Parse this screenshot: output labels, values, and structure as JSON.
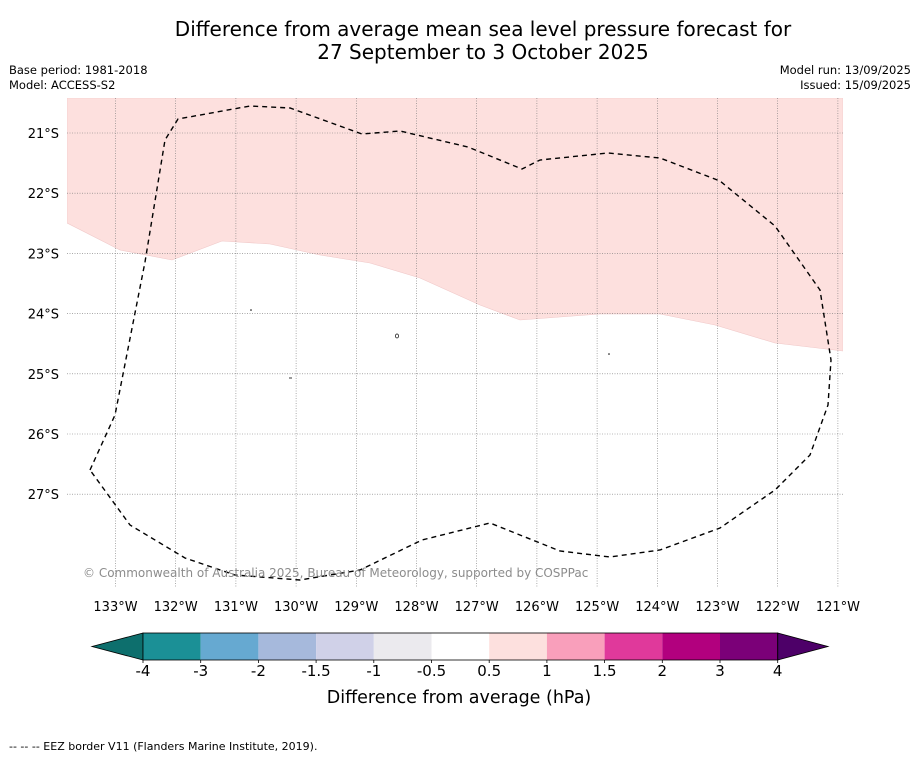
{
  "title": {
    "line1": "Difference from average mean sea level pressure forecast for",
    "line2": "27 September to 3 October 2025"
  },
  "meta_left": {
    "base_period": "Base period: 1981-2018",
    "model": "Model: ACCESS-S2"
  },
  "meta_right": {
    "model_run": "Model run: 13/09/2025",
    "issued": "Issued: 15/09/2025"
  },
  "map": {
    "latitude_labels": [
      "21°S",
      "22°S",
      "23°S",
      "24°S",
      "25°S",
      "26°S",
      "27°S"
    ],
    "longitude_labels": [
      "133°W",
      "132°W",
      "131°W",
      "130°W",
      "129°W",
      "128°W",
      "127°W",
      "126°W",
      "125°W",
      "124°W",
      "123°W",
      "122°W",
      "121°W"
    ],
    "anomaly_region": {
      "category": "0.5 to 1 hPa",
      "color": "#fde0de"
    },
    "copyright": "© Commonwealth of Australia 2025, Bureau of Meteorology, supported by COSPPac"
  },
  "colorbar": {
    "labels": [
      "-4",
      "-3",
      "-2",
      "-1.5",
      "-1",
      "-0.5",
      "0.5",
      "1",
      "1.5",
      "2",
      "3",
      "4"
    ],
    "colors": [
      "#0d6f6d",
      "#1b9096",
      "#66a9d1",
      "#a6b9dc",
      "#d0d1e8",
      "#ebeaee",
      "#ffffff",
      "#fde0de",
      "#f99fbb",
      "#e0399b",
      "#b2007e",
      "#7b0078",
      "#4d0068"
    ],
    "title": "Difference from average (hPa)"
  },
  "footnote": "--  --  -- EEZ border V11 (Flanders Marine Institute, 2019)."
}
